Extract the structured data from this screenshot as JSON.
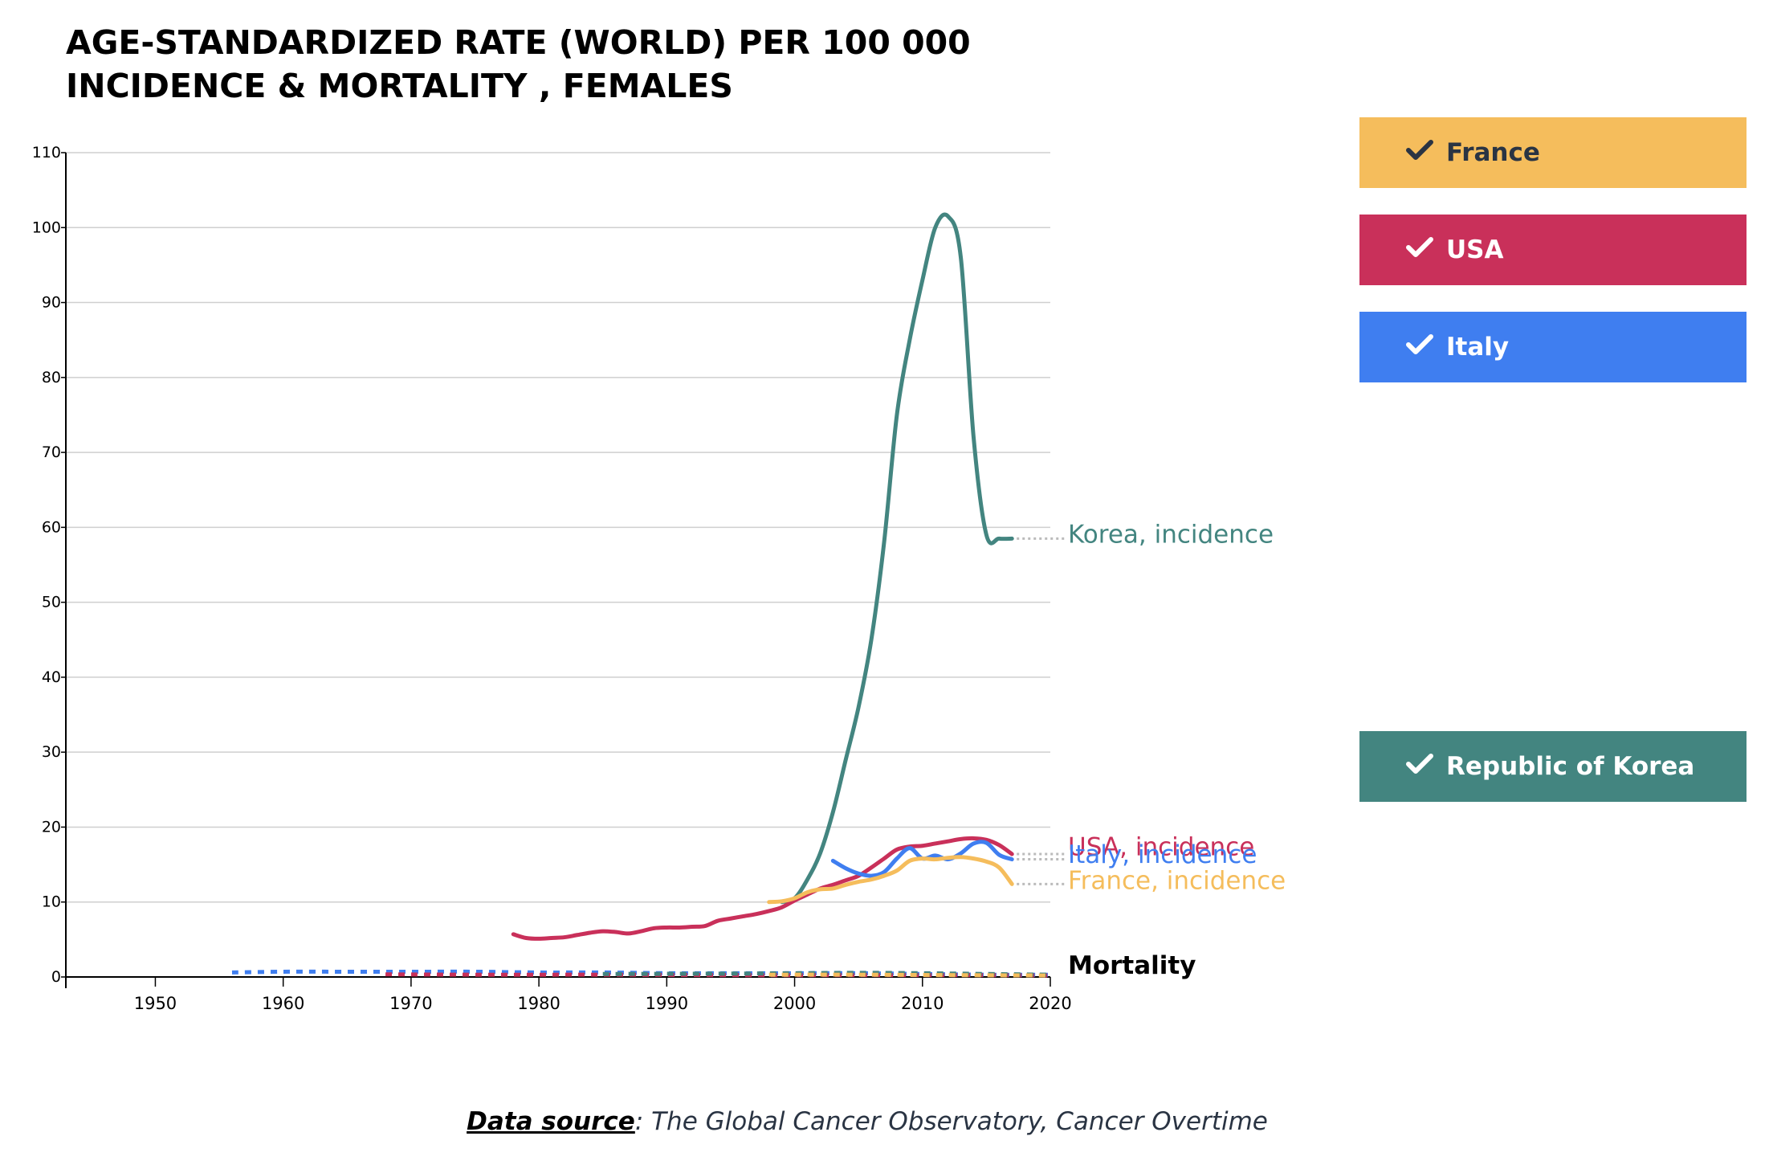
{
  "title": {
    "line1": "AGE-STANDARDIZED RATE (WORLD) PER 100 000",
    "line2": "INCIDENCE & MORTALITY , FEMALES"
  },
  "legend": [
    {
      "key": "france",
      "label": "France",
      "color": "#f5bd5c",
      "icon": "check-icon"
    },
    {
      "key": "usa",
      "label": "USA",
      "color": "#c9305a",
      "icon": "check-icon"
    },
    {
      "key": "italy",
      "label": "Italy",
      "color": "#3f7ef0",
      "icon": "check-icon"
    },
    {
      "key": "korea",
      "label": "Republic of Korea",
      "color": "#438580",
      "icon": "check-icon"
    }
  ],
  "source": {
    "label": "Data source",
    "text": ": The Global Cancer Observatory, Cancer Overtime"
  },
  "chart_data": {
    "type": "line",
    "xlim": [
      1943,
      2020
    ],
    "ylim": [
      0,
      110
    ],
    "x_ticks": [
      1950,
      1960,
      1970,
      1980,
      1990,
      2000,
      2010,
      2020
    ],
    "y_ticks": [
      0,
      10,
      20,
      30,
      40,
      50,
      60,
      70,
      80,
      90,
      100,
      110
    ],
    "grid": true,
    "series": [
      {
        "name": "Korea, incidence",
        "color": "#438580",
        "kind": "incidence",
        "points": [
          [
            1999,
            10
          ],
          [
            2000,
            10.5
          ],
          [
            2001,
            13
          ],
          [
            2002,
            16.5
          ],
          [
            2003,
            22
          ],
          [
            2004,
            29
          ],
          [
            2005,
            36
          ],
          [
            2006,
            45
          ],
          [
            2007,
            58
          ],
          [
            2008,
            75
          ],
          [
            2009,
            85
          ],
          [
            2010,
            93
          ],
          [
            2011,
            100
          ],
          [
            2012,
            101.5
          ],
          [
            2013,
            96
          ],
          [
            2014,
            72
          ],
          [
            2015,
            59
          ],
          [
            2016,
            58.5
          ],
          [
            2017,
            58.5
          ]
        ]
      },
      {
        "name": "USA, incidence",
        "color": "#c9305a",
        "kind": "incidence",
        "points": [
          [
            1978,
            5.7
          ],
          [
            1979,
            5.2
          ],
          [
            1980,
            5.1
          ],
          [
            1981,
            5.2
          ],
          [
            1982,
            5.3
          ],
          [
            1983,
            5.6
          ],
          [
            1984,
            5.9
          ],
          [
            1985,
            6.1
          ],
          [
            1986,
            6.0
          ],
          [
            1987,
            5.8
          ],
          [
            1988,
            6.1
          ],
          [
            1989,
            6.5
          ],
          [
            1990,
            6.6
          ],
          [
            1991,
            6.6
          ],
          [
            1992,
            6.7
          ],
          [
            1993,
            6.8
          ],
          [
            1994,
            7.5
          ],
          [
            1995,
            7.8
          ],
          [
            1996,
            8.1
          ],
          [
            1997,
            8.4
          ],
          [
            1998,
            8.8
          ],
          [
            1999,
            9.3
          ],
          [
            2000,
            10.2
          ],
          [
            2001,
            11.0
          ],
          [
            2002,
            11.8
          ],
          [
            2003,
            12.3
          ],
          [
            2004,
            12.9
          ],
          [
            2005,
            13.5
          ],
          [
            2006,
            14.6
          ],
          [
            2007,
            15.8
          ],
          [
            2008,
            17.0
          ],
          [
            2009,
            17.4
          ],
          [
            2010,
            17.5
          ],
          [
            2011,
            17.8
          ],
          [
            2012,
            18.1
          ],
          [
            2013,
            18.4
          ],
          [
            2014,
            18.5
          ],
          [
            2015,
            18.3
          ],
          [
            2016,
            17.6
          ],
          [
            2017,
            16.4
          ]
        ]
      },
      {
        "name": "Italy, incidence",
        "color": "#3f7ef0",
        "kind": "incidence",
        "points": [
          [
            2003,
            15.5
          ],
          [
            2004,
            14.5
          ],
          [
            2005,
            13.8
          ],
          [
            2006,
            13.5
          ],
          [
            2007,
            14.0
          ],
          [
            2008,
            15.8
          ],
          [
            2009,
            17.2
          ],
          [
            2010,
            15.8
          ],
          [
            2011,
            16.2
          ],
          [
            2012,
            15.7
          ],
          [
            2013,
            16.5
          ],
          [
            2014,
            17.8
          ],
          [
            2015,
            17.9
          ],
          [
            2016,
            16.3
          ],
          [
            2017,
            15.7
          ]
        ]
      },
      {
        "name": "France, incidence",
        "color": "#f5bd5c",
        "kind": "incidence",
        "points": [
          [
            1998,
            10.0
          ],
          [
            1999,
            10.1
          ],
          [
            2000,
            10.5
          ],
          [
            2001,
            11.3
          ],
          [
            2002,
            11.7
          ],
          [
            2003,
            11.8
          ],
          [
            2004,
            12.3
          ],
          [
            2005,
            12.7
          ],
          [
            2006,
            13.0
          ],
          [
            2007,
            13.5
          ],
          [
            2008,
            14.2
          ],
          [
            2009,
            15.5
          ],
          [
            2010,
            15.8
          ],
          [
            2011,
            15.7
          ],
          [
            2012,
            15.9
          ],
          [
            2013,
            16.0
          ],
          [
            2014,
            15.8
          ],
          [
            2015,
            15.4
          ],
          [
            2016,
            14.6
          ],
          [
            2017,
            12.4
          ]
        ]
      },
      {
        "name": "Italy, mortality",
        "color": "#3f7ef0",
        "kind": "mortality",
        "points": [
          [
            1956,
            0.6
          ],
          [
            1960,
            0.7
          ],
          [
            1965,
            0.7
          ],
          [
            1970,
            0.7
          ],
          [
            1975,
            0.7
          ],
          [
            1980,
            0.6
          ],
          [
            1985,
            0.6
          ],
          [
            1990,
            0.5
          ],
          [
            1995,
            0.5
          ],
          [
            2000,
            0.5
          ],
          [
            2005,
            0.5
          ],
          [
            2010,
            0.4
          ],
          [
            2015,
            0.3
          ],
          [
            2020,
            0.3
          ]
        ]
      },
      {
        "name": "USA, mortality",
        "color": "#c9305a",
        "kind": "mortality",
        "points": [
          [
            1968,
            0.35
          ],
          [
            1975,
            0.3
          ],
          [
            1985,
            0.3
          ],
          [
            1995,
            0.25
          ],
          [
            2005,
            0.25
          ],
          [
            2015,
            0.25
          ],
          [
            2020,
            0.2
          ]
        ]
      },
      {
        "name": "Korea, mortality",
        "color": "#438580",
        "kind": "mortality",
        "points": [
          [
            1985,
            0.4
          ],
          [
            1995,
            0.45
          ],
          [
            2000,
            0.5
          ],
          [
            2005,
            0.55
          ],
          [
            2010,
            0.5
          ],
          [
            2015,
            0.4
          ],
          [
            2020,
            0.3
          ]
        ]
      },
      {
        "name": "France, mortality",
        "color": "#f5bd5c",
        "kind": "mortality",
        "points": [
          [
            1998,
            0.3
          ],
          [
            2005,
            0.3
          ],
          [
            2012,
            0.25
          ],
          [
            2020,
            0.2
          ]
        ]
      }
    ],
    "end_labels": [
      {
        "text": "Korea, incidence",
        "color": "#438580",
        "y": 58.5,
        "label_y": 59
      },
      {
        "text": "USA, incidence",
        "color": "#c9305a",
        "y": 16.4,
        "label_y": 17.3
      },
      {
        "text": "Italy, incidence",
        "color": "#3f7ef0",
        "y": 15.7,
        "label_y": 16.3
      },
      {
        "text": "France, incidence",
        "color": "#f5bd5c",
        "y": 12.4,
        "label_y": 12.8
      },
      {
        "text": "Mortality",
        "color": "#000000",
        "y": 0.3,
        "label_y": 1.5
      }
    ]
  }
}
